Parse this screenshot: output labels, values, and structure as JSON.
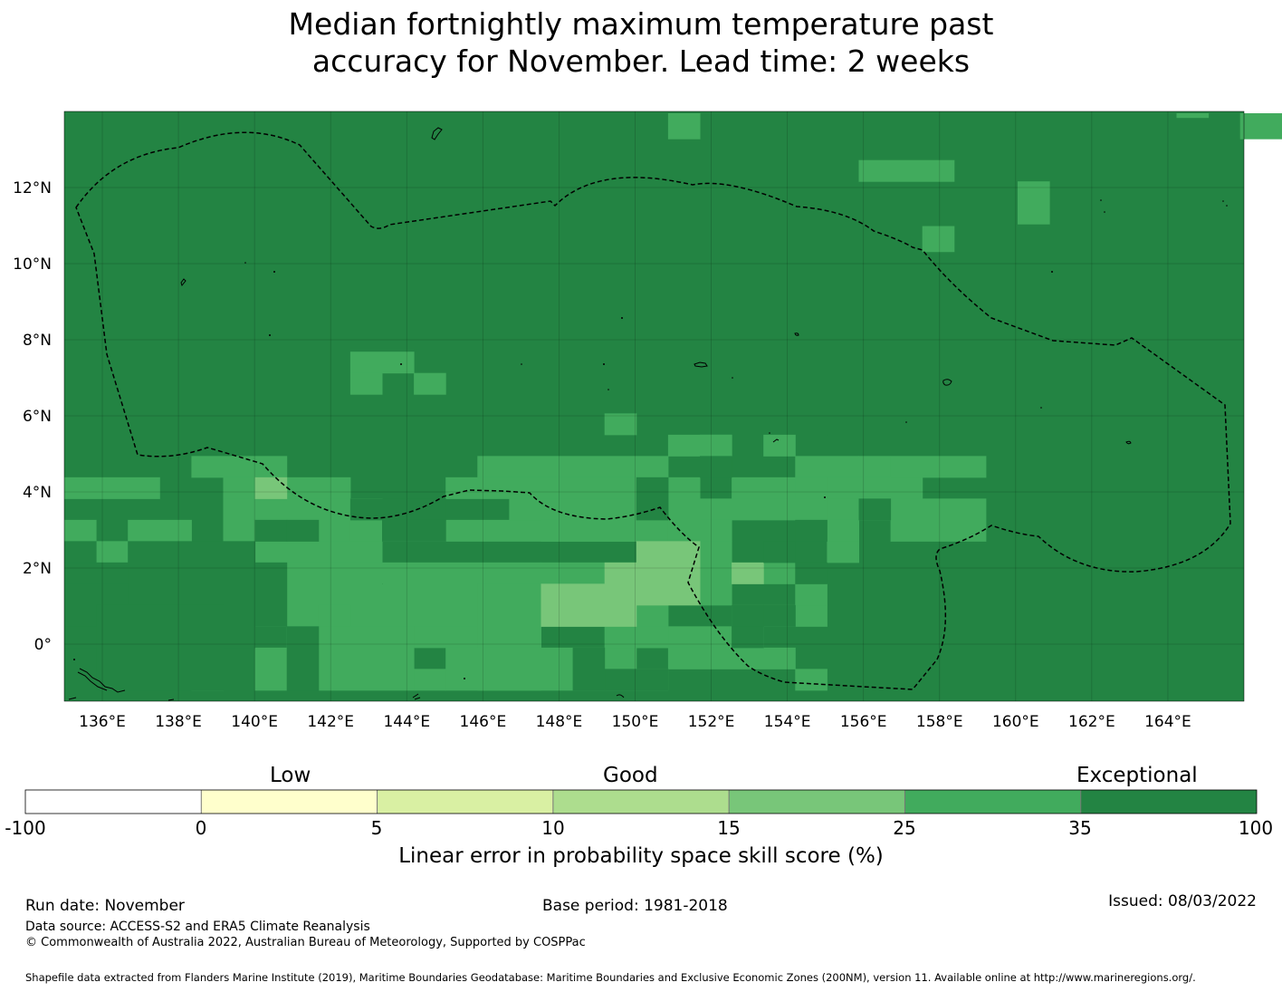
{
  "title_lines": [
    "Median fortnightly maximum temperature past",
    "accuracy for November. Lead time: 2 weeks"
  ],
  "map": {
    "lon_range": [
      135,
      166
    ],
    "lat_range": [
      -1.5,
      14
    ],
    "x_ticks": [
      "136°E",
      "138°E",
      "140°E",
      "142°E",
      "144°E",
      "146°E",
      "148°E",
      "150°E",
      "152°E",
      "154°E",
      "156°E",
      "158°E",
      "160°E",
      "162°E",
      "164°E"
    ],
    "y_ticks": [
      "12°N",
      "10°N",
      "8°N",
      "6°N",
      "4°N",
      "2°N",
      "0°"
    ],
    "cell_categories": {
      "35_100": "#238443",
      "25_35": "#41ab5d",
      "15_25": "#78c679"
    },
    "eez_boundary": "dashed black line"
  },
  "colorbar": {
    "category_labels": [
      "Low",
      "Good",
      "Exceptional"
    ],
    "boundaries": [
      "-100",
      "0",
      "5",
      "10",
      "15",
      "25",
      "35",
      "100"
    ],
    "colors": [
      "#ffffff",
      "#ffffcc",
      "#d9f0a3",
      "#addd8e",
      "#78c679",
      "#41ab5d",
      "#238443"
    ],
    "title": "Linear error in probability space skill score (%)"
  },
  "footer": {
    "run_date": "Run date: November",
    "base_period": "Base period: 1981-2018",
    "issued": "Issued: 08/03/2022",
    "data_source": "Data source: ACCESS-S2 and ERA5 Climate Reanalysis",
    "copyright": "© Commonwealth of Australia 2022, Australian Bureau of Meteorology, Supported by COSPPac",
    "shapefile": "Shapefile data extracted from Flanders Marine Institute (2019), Maritime Boundaries Geodatabase: Maritime Boundaries and Exclusive Economic Zones (200NM), version 11. Available online at http://www.marineregions.org/."
  }
}
